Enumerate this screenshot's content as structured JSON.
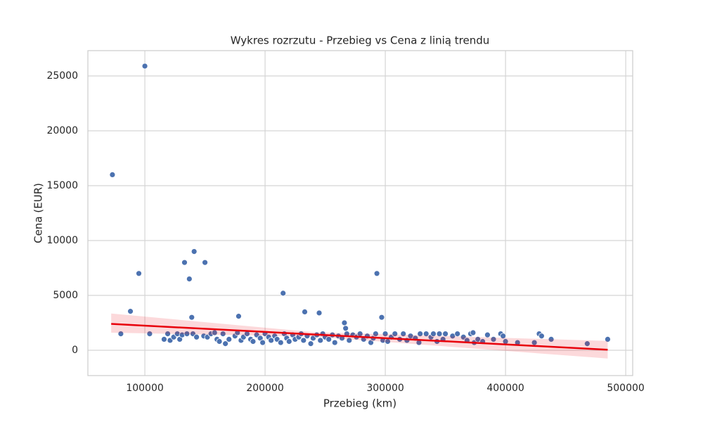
{
  "chart_data": {
    "type": "scatter",
    "title": "Wykres rozrzutu - Przebieg vs Cena z linią trendu",
    "xlabel": "Przebieg (km)",
    "ylabel": "Cena (EUR)",
    "color": "#4c72b0",
    "x": [
      73000,
      80000,
      88000,
      95000,
      100000,
      104000,
      116000,
      119000,
      121000,
      124000,
      127000,
      129000,
      131000,
      133000,
      135000,
      137000,
      139000,
      140000,
      141000,
      143000,
      150000,
      149000,
      152000,
      155000,
      158000,
      160000,
      162000,
      165000,
      167000,
      170000,
      175000,
      178000,
      177000,
      180000,
      182000,
      185000,
      188000,
      190000,
      193000,
      196000,
      198000,
      200000,
      203000,
      205000,
      208000,
      210000,
      213000,
      215000,
      216000,
      218000,
      220000,
      223000,
      225000,
      228000,
      230000,
      232000,
      233000,
      235000,
      238000,
      240000,
      243000,
      245000,
      246000,
      248000,
      250000,
      253000,
      256000,
      258000,
      261000,
      264000,
      266000,
      267000,
      268000,
      270000,
      273000,
      276000,
      279000,
      282000,
      285000,
      288000,
      290000,
      292000,
      293000,
      297000,
      298000,
      300000,
      302000,
      305000,
      308000,
      312000,
      315000,
      318000,
      321000,
      325000,
      328000,
      329000,
      334000,
      338000,
      340000,
      343000,
      345000,
      348000,
      350000,
      356000,
      360000,
      365000,
      368000,
      371000,
      373000,
      374000,
      377000,
      381000,
      385000,
      390000,
      396000,
      398000,
      400000,
      410000,
      424000,
      428000,
      430000,
      438000,
      468000,
      485000
    ],
    "y": [
      16000,
      1500,
      3550,
      7000,
      25900,
      1500,
      1000,
      1500,
      900,
      1200,
      1500,
      1000,
      1400,
      8000,
      1500,
      6500,
      3000,
      1500,
      9000,
      1200,
      8000,
      1300,
      1200,
      1500,
      1600,
      1000,
      800,
      1500,
      600,
      1000,
      1300,
      3100,
      1600,
      900,
      1200,
      1500,
      1000,
      800,
      1400,
      1100,
      700,
      1500,
      1200,
      900,
      1300,
      1000,
      700,
      5200,
      1500,
      1100,
      800,
      1400,
      1000,
      1200,
      1500,
      900,
      3500,
      1300,
      600,
      1100,
      1400,
      3400,
      900,
      1500,
      1200,
      1000,
      1400,
      700,
      1300,
      1100,
      2500,
      2000,
      1500,
      900,
      1400,
      1200,
      1500,
      1000,
      1300,
      700,
      1100,
      1500,
      7000,
      3000,
      900,
      1500,
      800,
      1200,
      1500,
      1000,
      1500,
      900,
      1300,
      1100,
      700,
      1500,
      1500,
      1200,
      1500,
      800,
      1500,
      1000,
      1500,
      1300,
      1500,
      1200,
      900,
      1500,
      1600,
      700,
      1000,
      800,
      1400,
      1000,
      1500,
      1300,
      800,
      700,
      700,
      1500,
      1300,
      1000,
      600,
      1000
    ],
    "trend": {
      "color": "#e8000b",
      "x": [
        72000,
        240000,
        485000
      ],
      "y": [
        2400,
        1444,
        50
      ],
      "lower": [
        1600,
        1250,
        -750
      ],
      "upper": [
        3350,
        1650,
        850
      ]
    },
    "xlim": [
      52600,
      505800
    ],
    "ylim": [
      -2308,
      27308
    ],
    "xticks": [
      100000,
      200000,
      300000,
      400000,
      500000
    ],
    "yticks": [
      0,
      5000,
      10000,
      15000,
      20000,
      25000
    ],
    "grid": true
  }
}
